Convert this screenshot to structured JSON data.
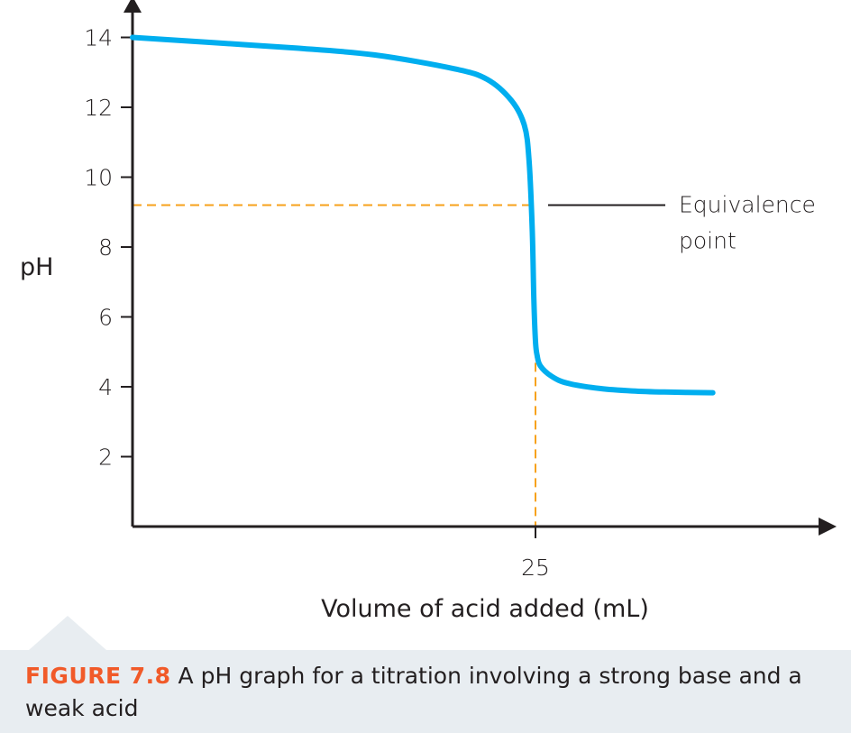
{
  "chart_data": {
    "type": "line",
    "ylabel": "pH",
    "xlabel": "Volume of acid added (mL)",
    "x_ticks": [
      "25"
    ],
    "y_ticks": [
      "2",
      "4",
      "6",
      "8",
      "10",
      "12",
      "14"
    ],
    "xlim": [
      0,
      39
    ],
    "ylim": [
      0,
      15
    ],
    "grid": false,
    "series": [
      {
        "color": "#00aeef",
        "x": [
          0,
          5,
          10,
          15,
          20,
          22,
          23.5,
          24.3,
          24.6,
          24.8,
          24.9,
          25.0,
          25.1,
          25.3,
          26,
          27,
          29,
          31,
          33,
          36
        ],
        "y": [
          14.0,
          13.85,
          13.7,
          13.5,
          13.1,
          12.8,
          12.2,
          11.5,
          10.5,
          8.5,
          6.5,
          5.3,
          4.9,
          4.6,
          4.3,
          4.1,
          3.95,
          3.88,
          3.85,
          3.83
        ]
      }
    ],
    "annotation": {
      "line1": "Equivalence",
      "line2": "point",
      "x": 25,
      "y": 9.2
    },
    "caption": {
      "label": "FIGURE 7.8",
      "text": "A pH graph for a titration involving a strong base and a weak acid"
    },
    "colors": {
      "curve": "#00aeef",
      "guide": "#f7a21b",
      "axis": "#231f20",
      "caption_label": "#f15a29",
      "caption_bg": "#e8edf1"
    }
  }
}
